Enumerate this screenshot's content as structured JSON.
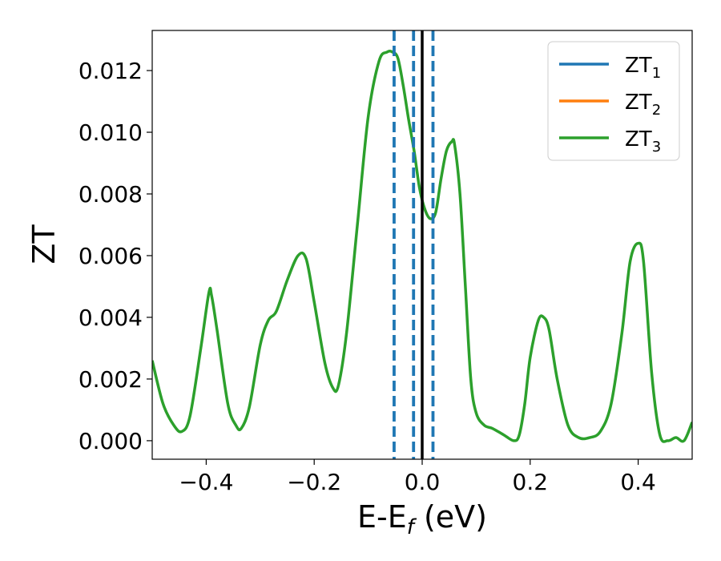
{
  "chart_data": {
    "type": "line",
    "title": "",
    "xlabel": {
      "main": "E-E",
      "sub": "f",
      "unit": " (eV)"
    },
    "ylabel": "ZT",
    "xlim": [
      -0.5,
      0.5
    ],
    "ylim": [
      -0.0006,
      0.0133
    ],
    "xticks": [
      -0.4,
      -0.2,
      0.0,
      0.2,
      0.4
    ],
    "xtick_labels": [
      "−0.4",
      "−0.2",
      "0.0",
      "0.2",
      "0.4"
    ],
    "yticks": [
      0.0,
      0.002,
      0.004,
      0.006,
      0.008,
      0.01,
      0.012
    ],
    "ytick_labels": [
      "0.000",
      "0.002",
      "0.004",
      "0.006",
      "0.008",
      "0.010",
      "0.012"
    ],
    "grid": false,
    "legend_position": "top-right",
    "series": [
      {
        "name": "ZT",
        "sub": "1",
        "color": "#1f77b4",
        "values": []
      },
      {
        "name": "ZT",
        "sub": "2",
        "color": "#ff7f0e",
        "values": []
      },
      {
        "name": "ZT",
        "sub": "3",
        "color": "#2ca02c",
        "x": [
          -0.5,
          -0.48,
          -0.46,
          -0.445,
          -0.43,
          -0.41,
          -0.395,
          -0.39,
          -0.38,
          -0.36,
          -0.345,
          -0.335,
          -0.32,
          -0.3,
          -0.285,
          -0.27,
          -0.25,
          -0.23,
          -0.215,
          -0.2,
          -0.18,
          -0.165,
          -0.155,
          -0.14,
          -0.12,
          -0.1,
          -0.08,
          -0.065,
          -0.055,
          -0.045,
          -0.035,
          -0.025,
          -0.015,
          -0.005,
          0.005,
          0.015,
          0.025,
          0.035,
          0.045,
          0.055,
          0.06,
          0.07,
          0.08,
          0.09,
          0.1,
          0.115,
          0.13,
          0.15,
          0.17,
          0.18,
          0.19,
          0.2,
          0.215,
          0.225,
          0.235,
          0.25,
          0.27,
          0.29,
          0.31,
          0.33,
          0.35,
          0.37,
          0.385,
          0.4,
          0.41,
          0.425,
          0.44,
          0.455,
          0.47,
          0.485,
          0.5
        ],
        "y": [
          0.0026,
          0.0012,
          0.0005,
          0.0003,
          0.0008,
          0.003,
          0.0048,
          0.0047,
          0.0036,
          0.0012,
          0.0005,
          0.0004,
          0.0011,
          0.0031,
          0.0039,
          0.0042,
          0.0052,
          0.006,
          0.0059,
          0.0045,
          0.0025,
          0.0017,
          0.0018,
          0.0035,
          0.007,
          0.0105,
          0.0123,
          0.0126,
          0.0126,
          0.0124,
          0.0115,
          0.0104,
          0.0094,
          0.0082,
          0.0075,
          0.0072,
          0.0074,
          0.0085,
          0.0094,
          0.0097,
          0.0096,
          0.008,
          0.005,
          0.002,
          0.0009,
          0.0005,
          0.0004,
          0.0002,
          0.0,
          0.0002,
          0.0012,
          0.0027,
          0.0039,
          0.004,
          0.0036,
          0.002,
          0.0005,
          0.0001,
          0.0001,
          0.0003,
          0.0012,
          0.0035,
          0.0058,
          0.0064,
          0.0058,
          0.0022,
          0.0002,
          0.0,
          0.0001,
          0.0,
          0.0006
        ]
      }
    ],
    "vlines": [
      {
        "x": 0.0,
        "style": "solid",
        "color": "#000000"
      },
      {
        "x": -0.052,
        "style": "dashed",
        "color": "#1f77b4"
      },
      {
        "x": -0.016,
        "style": "dashed",
        "color": "#1f77b4"
      },
      {
        "x": 0.02,
        "style": "dashed",
        "color": "#1f77b4"
      }
    ]
  }
}
